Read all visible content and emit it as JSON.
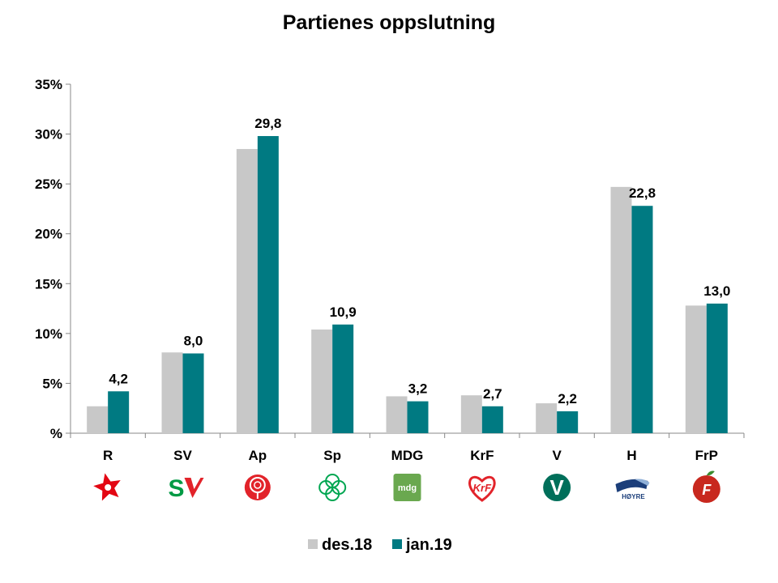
{
  "chart_data": {
    "type": "bar",
    "title": "Partienes oppslutning",
    "categories": [
      "R",
      "SV",
      "Ap",
      "Sp",
      "MDG",
      "KrF",
      "V",
      "H",
      "FrP"
    ],
    "series": [
      {
        "name": "des.18",
        "color": "#c8c8c8",
        "values": [
          2.7,
          8.1,
          28.5,
          10.4,
          3.7,
          3.8,
          3.0,
          24.7,
          12.8
        ],
        "show_labels": false
      },
      {
        "name": "jan.19",
        "color": "#007a82",
        "values": [
          4.2,
          8.0,
          29.8,
          10.9,
          3.2,
          2.7,
          2.2,
          22.8,
          13.0
        ],
        "show_labels": true,
        "labels": [
          "4,2",
          "8,0",
          "29,8",
          "10,9",
          "3,2",
          "2,7",
          "2,2",
          "22,8",
          "13,0"
        ]
      }
    ],
    "ylim": [
      0,
      35
    ],
    "y_ticks": [
      0,
      5,
      10,
      15,
      20,
      25,
      30,
      35
    ],
    "y_tick_labels": [
      "%",
      "5%",
      "10%",
      "15%",
      "20%",
      "25%",
      "30%",
      "35%"
    ],
    "grid": false,
    "legend_position": "bottom",
    "party_logos": [
      {
        "party": "R",
        "icon": "red-star-icon",
        "color": "#e30613"
      },
      {
        "party": "SV",
        "icon": "sv-logo-icon",
        "color": "#e2232a",
        "text_color": "#009a44",
        "text": "S"
      },
      {
        "party": "Ap",
        "icon": "red-rose-icon",
        "color": "#e2232a"
      },
      {
        "party": "Sp",
        "icon": "green-clover-icon",
        "color": "#00a651"
      },
      {
        "party": "MDG",
        "icon": "mdg-logo-icon",
        "color": "#6aa84f",
        "text": "mdg"
      },
      {
        "party": "KrF",
        "icon": "krf-heart-icon",
        "color": "#e2232a",
        "text": "KrF"
      },
      {
        "party": "V",
        "icon": "v-logo-icon",
        "color": "#006f5a",
        "text": "V"
      },
      {
        "party": "H",
        "icon": "hoyre-logo-icon",
        "color": "#1b3e7a",
        "text": "HØYRE"
      },
      {
        "party": "FrP",
        "icon": "frp-apple-icon",
        "color": "#c8281e",
        "text": "F"
      }
    ]
  }
}
